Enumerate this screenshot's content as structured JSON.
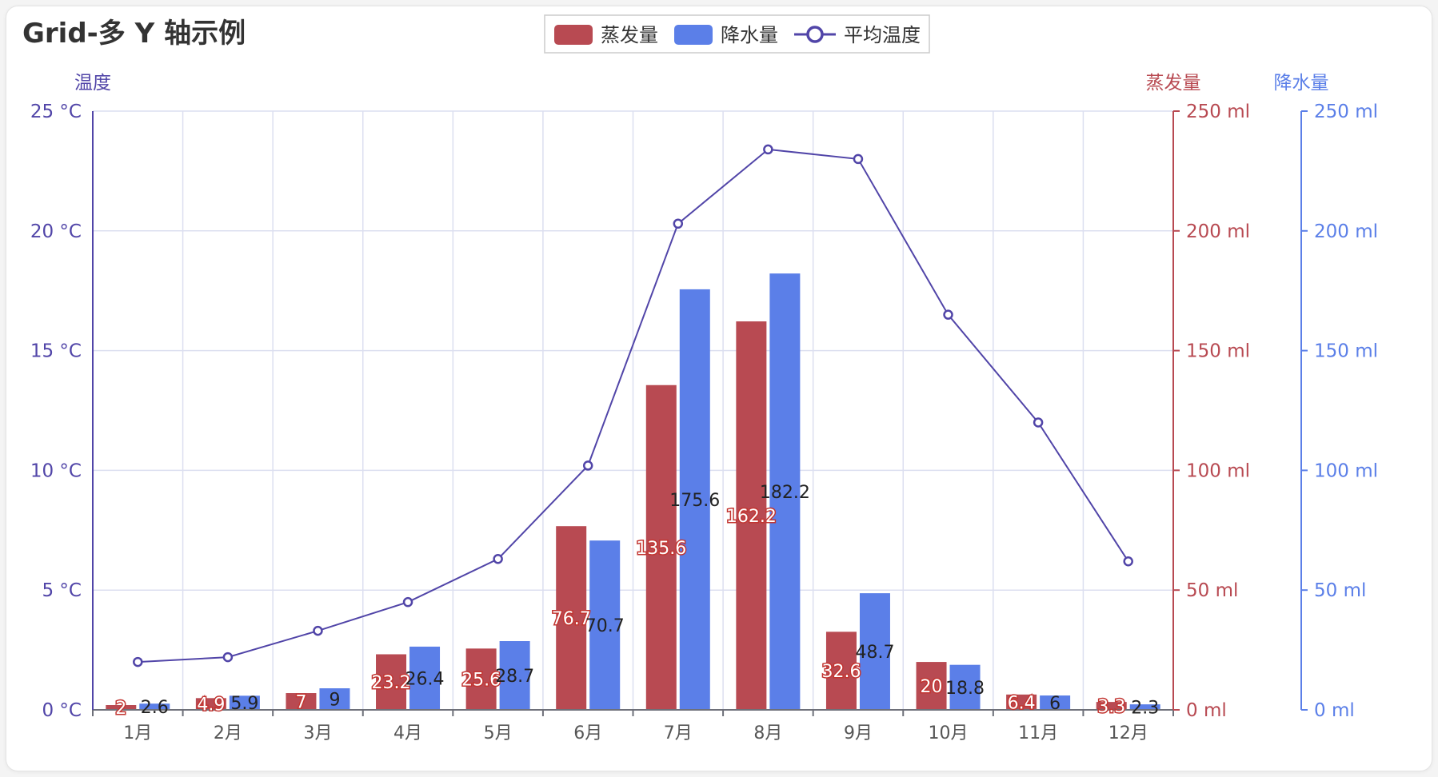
{
  "title": "Grid-多 Y 轴示例",
  "colors": {
    "evaporation": "#b84a52",
    "precipitation": "#5b7fe8",
    "temperature": "#5145a8",
    "grid": "#dcdff0",
    "text": "#333333"
  },
  "legend": [
    "蒸发量",
    "降水量",
    "平均温度"
  ],
  "chart_data": {
    "type": "bar",
    "title": "Grid-多 Y 轴示例",
    "categories": [
      "1月",
      "2月",
      "3月",
      "4月",
      "5月",
      "6月",
      "7月",
      "8月",
      "9月",
      "10月",
      "11月",
      "12月"
    ],
    "series": [
      {
        "name": "蒸发量",
        "type": "bar",
        "axis": "蒸发量",
        "values": [
          2,
          4.9,
          7,
          23.2,
          25.6,
          76.7,
          135.6,
          162.2,
          32.6,
          20,
          6.4,
          3.3
        ]
      },
      {
        "name": "降水量",
        "type": "bar",
        "axis": "降水量",
        "values": [
          2.6,
          5.9,
          9,
          26.4,
          28.7,
          70.7,
          175.6,
          182.2,
          48.7,
          18.8,
          6,
          2.3
        ]
      },
      {
        "name": "平均温度",
        "type": "line",
        "axis": "温度",
        "values": [
          2.0,
          2.2,
          3.3,
          4.5,
          6.3,
          10.2,
          20.3,
          23.4,
          23.0,
          16.5,
          12.0,
          6.2
        ]
      }
    ],
    "y_axes": [
      {
        "name": "温度",
        "position": "left",
        "ylim": [
          0,
          25
        ],
        "ticks": [
          "0 °C",
          "5 °C",
          "10 °C",
          "15 °C",
          "20 °C",
          "25 °C"
        ]
      },
      {
        "name": "蒸发量",
        "position": "right",
        "ylim": [
          0,
          250
        ],
        "ticks": [
          "0 ml",
          "50 ml",
          "100 ml",
          "150 ml",
          "200 ml",
          "250 ml"
        ]
      },
      {
        "name": "降水量",
        "position": "right",
        "ylim": [
          0,
          250
        ],
        "ticks": [
          "0 ml",
          "50 ml",
          "100 ml",
          "150 ml",
          "200 ml",
          "250 ml"
        ]
      }
    ],
    "grid": true,
    "legend_position": "top-center"
  }
}
